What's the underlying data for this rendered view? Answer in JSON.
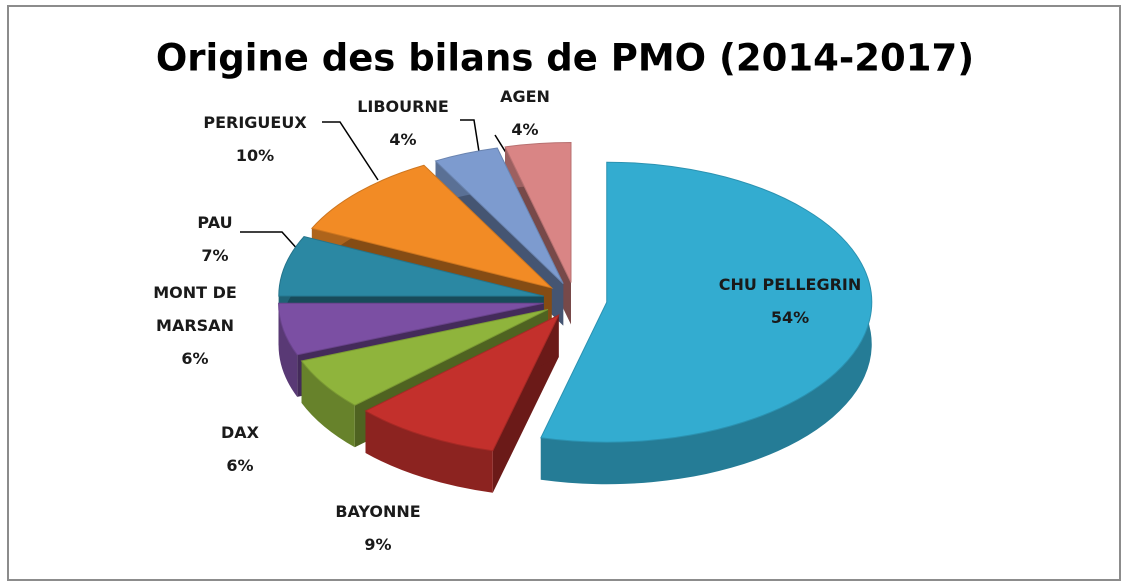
{
  "chart_data": {
    "type": "pie",
    "title": "Origine des bilans de PMO (2014-2017)",
    "categories": [
      "CHU PELLEGRIN",
      "BAYONNE",
      "DAX",
      "MONT DE MARSAN",
      "PAU",
      "PERIGUEUX",
      "LIBOURNE",
      "AGEN"
    ],
    "values": [
      54,
      9,
      6,
      6,
      7,
      10,
      4,
      4
    ],
    "value_labels": [
      "54%",
      "9%",
      "6%",
      "6%",
      "7%",
      "10%",
      "4%",
      "4%"
    ],
    "colors": [
      "#33acd0",
      "#c3302c",
      "#8fb43c",
      "#7b4fa3",
      "#2b88a3",
      "#f28b25",
      "#7d9bcf",
      "#d98585"
    ]
  }
}
